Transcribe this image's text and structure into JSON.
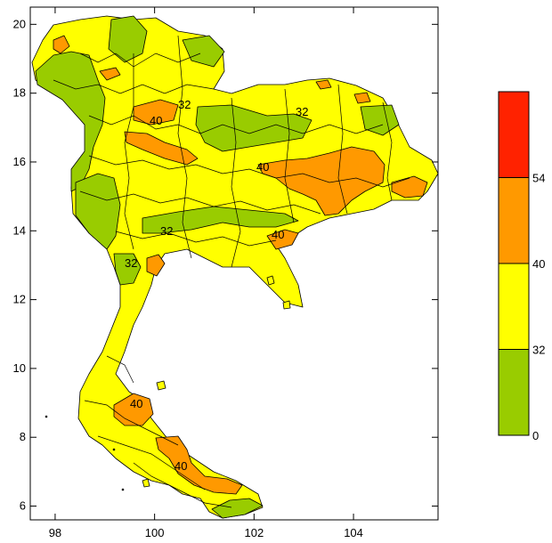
{
  "chart_data": {
    "type": "map",
    "x_ticks": [
      98,
      100,
      102,
      104
    ],
    "y_ticks": [
      6,
      8,
      10,
      12,
      14,
      16,
      18,
      20
    ],
    "xlim": [
      97.5,
      105.7
    ],
    "ylim": [
      5.6,
      20.5
    ],
    "contour_labels": [
      "40",
      "32",
      "32",
      "40",
      "40",
      "32",
      "32",
      "40",
      "40"
    ],
    "legend": {
      "bins": [
        {
          "from": 0,
          "to": 32,
          "color": "#99cc00"
        },
        {
          "from": 32,
          "to": 40,
          "color": "#ffff00"
        },
        {
          "from": 40,
          "to": 54,
          "color": "#ff9900"
        },
        {
          "from": 54,
          "to": null,
          "color": "#ff2200"
        }
      ],
      "labels": [
        "54",
        "40",
        "32",
        "0"
      ]
    }
  }
}
